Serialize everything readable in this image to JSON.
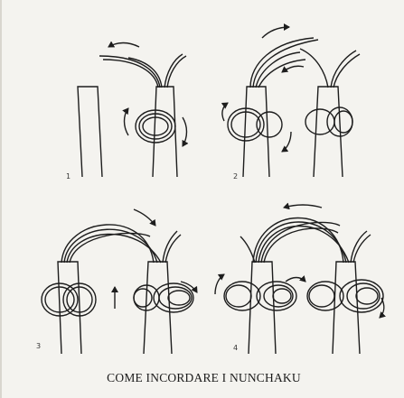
{
  "steps": [
    {
      "number": "1"
    },
    {
      "number": "2"
    },
    {
      "number": "3"
    },
    {
      "number": "4"
    }
  ],
  "caption": "COME INCORDARE I NUNCHAKU",
  "colors": {
    "line": "#1d1d1d",
    "paper": "#f4f3ef"
  }
}
